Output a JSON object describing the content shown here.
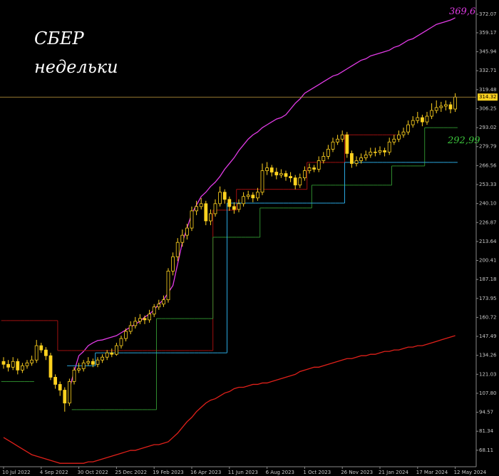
{
  "chart_data": {
    "type": "candlestick",
    "annotations": [
      "СБЕР",
      "недельки",
      "369,6",
      "292,99"
    ],
    "categories": [
      "10 Jul 2022",
      null,
      null,
      null,
      null,
      null,
      null,
      null,
      "4 Sep 2022",
      null,
      null,
      null,
      null,
      null,
      null,
      null,
      "30 Oct 2022",
      null,
      null,
      null,
      null,
      null,
      null,
      null,
      "25 Dec 2022",
      null,
      null,
      null,
      null,
      null,
      null,
      null,
      "19 Feb 2023",
      null,
      null,
      null,
      null,
      null,
      null,
      null,
      "16 Apr 2023",
      null,
      null,
      null,
      null,
      null,
      null,
      null,
      "11 Jun 2023",
      null,
      null,
      null,
      null,
      null,
      null,
      null,
      "6 Aug 2023",
      null,
      null,
      null,
      null,
      null,
      null,
      null,
      "1 Oct 2023",
      null,
      null,
      null,
      null,
      null,
      null,
      null,
      "26 Nov 2023",
      null,
      null,
      null,
      null,
      null,
      null,
      null,
      "21 Jan 2024",
      null,
      null,
      null,
      null,
      null,
      null,
      null,
      "17 Mar 2024",
      null,
      null,
      null,
      null,
      null,
      null,
      null,
      "12 May 2024"
    ],
    "open": [
      130,
      128,
      126,
      130,
      124,
      127,
      129,
      131,
      141,
      138,
      134,
      119,
      114,
      110,
      101,
      116,
      124,
      125,
      129,
      130,
      128,
      131,
      133,
      136,
      135,
      141,
      146,
      151,
      155,
      158,
      160,
      159,
      163,
      168,
      170,
      173,
      193,
      203,
      213,
      218,
      223,
      235,
      238,
      240,
      228,
      233,
      240,
      248,
      243,
      238,
      236,
      240,
      245,
      246,
      244,
      248,
      263,
      265,
      262,
      260,
      261,
      259,
      258,
      253,
      258,
      263,
      265,
      264,
      270,
      273,
      278,
      283,
      285,
      288,
      275,
      268,
      270,
      272,
      274,
      276,
      276,
      277,
      276,
      283,
      285,
      288,
      290,
      295,
      298,
      300,
      297,
      301,
      305,
      307,
      308,
      309,
      306
    ],
    "high": [
      133,
      131,
      133,
      132,
      129,
      131,
      134,
      145,
      143,
      140,
      136,
      121,
      116,
      112,
      118,
      126,
      129,
      131,
      133,
      132,
      133,
      135,
      138,
      139,
      143,
      148,
      153,
      158,
      161,
      163,
      162,
      166,
      170,
      173,
      176,
      195,
      206,
      216,
      222,
      226,
      238,
      242,
      244,
      242,
      236,
      243,
      252,
      250,
      245,
      241,
      243,
      248,
      249,
      248,
      251,
      268,
      269,
      267,
      265,
      264,
      263,
      262,
      260,
      261,
      266,
      268,
      267,
      273,
      276,
      281,
      286,
      288,
      291,
      290,
      277,
      273,
      275,
      277,
      279,
      279,
      280,
      279,
      286,
      288,
      291,
      293,
      298,
      301,
      304,
      302,
      304,
      310,
      312,
      311,
      312,
      311,
      317
    ],
    "low": [
      125,
      123,
      124,
      121,
      122,
      125,
      127,
      129,
      136,
      131,
      117,
      111,
      106,
      95,
      99,
      114,
      122,
      123,
      127,
      126,
      126,
      129,
      131,
      133,
      134,
      139,
      144,
      149,
      153,
      156,
      156,
      157,
      161,
      166,
      168,
      171,
      190,
      200,
      210,
      215,
      221,
      232,
      236,
      225,
      225,
      231,
      238,
      240,
      235,
      233,
      234,
      238,
      243,
      241,
      242,
      246,
      260,
      259,
      257,
      258,
      256,
      255,
      250,
      251,
      256,
      261,
      262,
      262,
      268,
      271,
      276,
      281,
      283,
      272,
      265,
      266,
      268,
      270,
      272,
      273,
      274,
      273,
      274,
      281,
      283,
      286,
      288,
      293,
      296,
      294,
      295,
      299,
      303,
      304,
      305,
      303,
      304
    ],
    "close": [
      128,
      126,
      130,
      124,
      127,
      129,
      131,
      141,
      138,
      134,
      119,
      114,
      110,
      101,
      116,
      124,
      125,
      129,
      130,
      128,
      131,
      133,
      136,
      135,
      141,
      146,
      151,
      155,
      158,
      160,
      159,
      163,
      168,
      170,
      173,
      193,
      203,
      213,
      218,
      223,
      235,
      238,
      240,
      228,
      233,
      240,
      248,
      243,
      238,
      236,
      240,
      245,
      246,
      244,
      248,
      263,
      265,
      262,
      260,
      261,
      259,
      258,
      253,
      258,
      263,
      265,
      264,
      270,
      273,
      278,
      283,
      285,
      288,
      275,
      268,
      270,
      272,
      274,
      276,
      276,
      277,
      276,
      283,
      285,
      288,
      290,
      295,
      298,
      300,
      297,
      301,
      305,
      307,
      308,
      309,
      306,
      314.32
    ],
    "candle_color": "#ffd21f",
    "price_line_color": "#c8a040",
    "overlays": [
      {
        "color": "#e23be6",
        "step": false,
        "values": [
          null,
          null,
          null,
          null,
          null,
          null,
          null,
          null,
          null,
          null,
          null,
          null,
          null,
          null,
          111,
          123,
          134,
          137,
          141,
          143,
          144.6,
          145,
          146,
          147,
          148,
          150,
          152,
          154,
          156,
          158,
          161,
          163,
          166,
          170,
          173,
          178,
          183,
          198,
          213,
          223,
          233,
          239,
          245,
          248,
          252,
          255,
          259,
          264,
          268,
          272,
          277,
          281,
          285,
          288,
          290,
          293,
          295,
          297,
          299,
          300,
          302,
          306,
          310,
          313,
          317,
          319,
          321,
          323,
          325,
          327,
          329,
          330,
          332,
          334,
          336,
          338,
          340,
          341,
          343,
          344,
          345,
          346,
          347,
          349,
          350,
          352,
          354,
          355,
          357,
          359,
          361,
          363,
          365,
          366,
          367,
          368,
          369.6
        ]
      },
      {
        "color": "#e0201a",
        "step": false,
        "values": [
          77,
          75,
          73,
          71,
          69,
          67,
          65,
          64,
          63,
          62,
          61,
          60,
          59,
          59,
          59,
          59,
          59,
          59,
          60,
          60,
          61,
          62,
          63,
          64,
          65,
          66,
          67,
          68,
          68,
          69,
          70,
          71,
          72,
          72,
          73,
          74,
          77,
          80,
          84,
          88,
          91,
          95,
          98,
          101,
          103,
          104,
          106,
          108,
          109,
          111,
          112,
          112,
          113,
          114,
          114,
          115,
          115,
          116,
          117,
          118,
          119,
          120,
          121,
          123,
          124,
          125,
          126,
          126,
          127,
          128,
          129,
          130,
          131,
          132,
          132,
          133,
          134,
          134,
          135,
          135,
          136,
          137,
          137,
          138,
          138,
          139,
          140,
          140,
          141,
          141,
          142,
          143,
          144,
          145,
          146,
          147,
          148
        ]
      },
      {
        "color": "#a01010",
        "step": true,
        "values": [
          158.5,
          158.5,
          158.5,
          158.5,
          158.5,
          158.5,
          158.5,
          158.5,
          158.5,
          158.5,
          158.5,
          158.5,
          137.6,
          137.6,
          137.6,
          137.6,
          137.6,
          137.6,
          137.6,
          137.6,
          137.6,
          137.6,
          137.6,
          137.6,
          137.6,
          137.6,
          137.6,
          137.6,
          137.6,
          137.6,
          137.6,
          137.6,
          137.6,
          137.6,
          137.6,
          137.6,
          137.6,
          137.6,
          137.6,
          137.6,
          137.6,
          137.6,
          137.6,
          137.6,
          137.6,
          235.5,
          235.5,
          235.5,
          235.5,
          235.5,
          250,
          250,
          250,
          250,
          250,
          250,
          250,
          250,
          250,
          250,
          250,
          250,
          250,
          250,
          250,
          268.8,
          268.8,
          268.8,
          268.8,
          268.8,
          268.8,
          268.8,
          268.8,
          288,
          288,
          288,
          288,
          288,
          288,
          288,
          288,
          288,
          288,
          288,
          null,
          null,
          null,
          null,
          null,
          null,
          null,
          null,
          null,
          null,
          null,
          null,
          null
        ]
      },
      {
        "color": "#2e8b2e",
        "step": true,
        "values": [
          116,
          116,
          116,
          116,
          116,
          116,
          116,
          null,
          null,
          null,
          null,
          null,
          null,
          null,
          null,
          96.4,
          96.4,
          96.4,
          96.4,
          96.4,
          96.4,
          96.4,
          96.4,
          96.4,
          96.4,
          96.4,
          96.4,
          96.4,
          96.4,
          96.4,
          96.4,
          96.4,
          96.4,
          159.9,
          159.9,
          159.9,
          159.9,
          159.9,
          159.9,
          159.9,
          159.9,
          159.9,
          159.9,
          159.9,
          159.9,
          216.6,
          216.6,
          216.6,
          216.6,
          216.6,
          216.6,
          216.6,
          216.6,
          216.6,
          216.6,
          237,
          237,
          237,
          237,
          237,
          237,
          237,
          237,
          237,
          237,
          237,
          252.9,
          252.9,
          252.9,
          252.9,
          252.9,
          252.9,
          252.9,
          252.9,
          252.9,
          252.9,
          252.9,
          252.9,
          252.9,
          252.9,
          252.9,
          252.9,
          252.9,
          266.3,
          266.3,
          266.3,
          266.3,
          266.3,
          266.3,
          266.3,
          292.99,
          292.99,
          292.99,
          292.99,
          292.99,
          292.99,
          292.99
        ]
      },
      {
        "color": "#2aa8e0",
        "step": true,
        "values": [
          null,
          null,
          null,
          null,
          null,
          null,
          null,
          null,
          null,
          null,
          null,
          null,
          null,
          null,
          127,
          127,
          127,
          127,
          127,
          127,
          136,
          136,
          136,
          136,
          136,
          136,
          136,
          136,
          136,
          136,
          136,
          136,
          136,
          136,
          136,
          136,
          136,
          136,
          136,
          136,
          136,
          136,
          136,
          136,
          136,
          136,
          136,
          136,
          240.4,
          240.4,
          240.4,
          240.4,
          240.4,
          240.4,
          240.4,
          240.4,
          240.4,
          240.4,
          240.4,
          240.4,
          240.4,
          240.4,
          240.4,
          240.4,
          240.4,
          240.4,
          240.4,
          240.4,
          240.4,
          240.4,
          240.4,
          240.4,
          240.4,
          268.8,
          268.8,
          268.8,
          268.8,
          268.8,
          268.8,
          268.8,
          268.8,
          268.8,
          268.8,
          268.8,
          268.8,
          268.8,
          268.8,
          268.8,
          268.8,
          268.8,
          268.8,
          268.8,
          268.8,
          268.8,
          268.8,
          268.8,
          268.8
        ]
      }
    ],
    "ylim": [
      56.6,
      382.0
    ],
    "yticks": [
      372.07,
      359.17,
      345.94,
      332.71,
      319.48,
      306.25,
      293.02,
      279.79,
      266.56,
      253.33,
      {
        "value": 240.1,
        "label": "240.10"
      },
      226.87,
      213.64,
      200.41,
      187.18,
      173.95,
      160.72,
      147.49,
      134.26,
      121.03,
      {
        "value": 107.8,
        "label": "107.80"
      },
      94.57,
      81.34,
      68.11
    ]
  }
}
